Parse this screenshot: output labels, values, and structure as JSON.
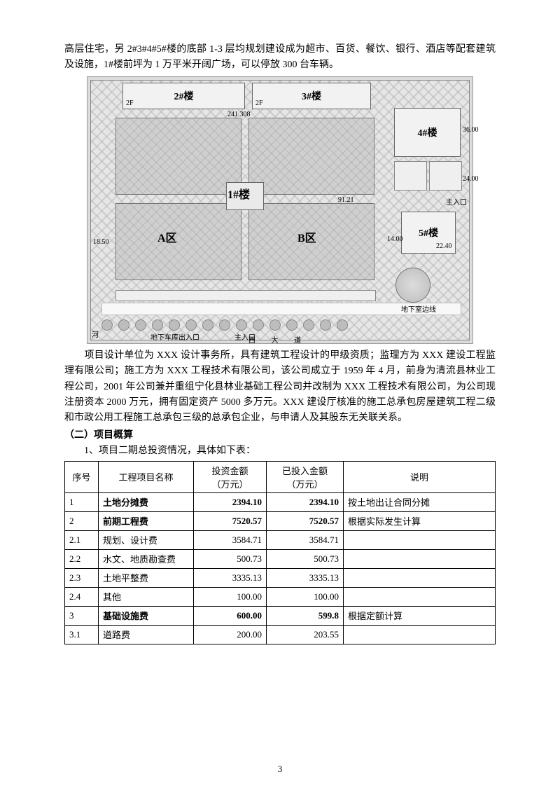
{
  "para_top": "高层住宅，另 2#3#4#5#楼的底部 1-3 层均规划建设成为超市、百货、餐饮、银行、酒店等配套建筑及设施，1#楼前坪为 1 万平米开阔广场，可以停放 300 台车辆。",
  "siteplan": {
    "b2": "2#楼",
    "b3": "3#楼",
    "b4": "4#楼",
    "b5": "5#楼",
    "b1": "1#楼",
    "aq": "A区",
    "bq": "B区",
    "gate_main": "主入口",
    "gate_side": "主入口",
    "garage_in": "地下车库出入口",
    "garage_edge": "地下室边线",
    "road_left": "河",
    "road_bottom": "西    大    道",
    "dim1": "241.308",
    "dim2": "18.50",
    "dim3": "14.00",
    "dim4": "22.40",
    "dim5": "36.00",
    "dim6": "24.00",
    "dim7": "91.21",
    "f2": "2F"
  },
  "para_mid": "　　项目设计单位为 XXX 设计事务所，具有建筑工程设计的甲级资质；监理方为 XXX 建设工程监理有限公司；施工方为 XXX 工程技术有限公司，该公司成立于 1959 年 4 月，前身为清流县林业工程公司，2001 年公司兼并重组宁化县林业基础工程公司并改制为 XXX 工程技术有限公司，为公司现注册资本 2000 万元，拥有固定资产 5000 多万元。XXX 建设厅核准的施工总承包房屋建筑工程二级和市政公用工程施工总承包三级的总承包企业，与申请人及其股东无关联关系。",
  "heading2": "（二）项目概算",
  "para_table_lead": "1、项目二期总投资情况，具体如下表：",
  "table": {
    "headers": {
      "seq": "序号",
      "name": "工程项目名称",
      "amount": "投资金额\n（万元）",
      "invested": "已投入金额\n（万元）",
      "note": "说明"
    },
    "rows": [
      {
        "seq": "1",
        "name": "土地分摊费",
        "amount": "2394.10",
        "invested": "2394.10",
        "note": "按土地出让合同分摊",
        "bold": true
      },
      {
        "seq": "2",
        "name": "前期工程费",
        "amount": "7520.57",
        "invested": "7520.57",
        "note": "根据实际发生计算",
        "bold": true
      },
      {
        "seq": "2.1",
        "name": "规划、设计费",
        "amount": "3584.71",
        "invested": "3584.71",
        "note": ""
      },
      {
        "seq": "2.2",
        "name": "水文、地质勘查费",
        "amount": "500.73",
        "invested": "500.73",
        "note": ""
      },
      {
        "seq": "2.3",
        "name": "土地平整费",
        "amount": "3335.13",
        "invested": "3335.13",
        "note": ""
      },
      {
        "seq": "2.4",
        "name": "其他",
        "amount": "100.00",
        "invested": "100.00",
        "note": ""
      },
      {
        "seq": "3",
        "name": "基础设施费",
        "amount": "600.00",
        "invested": "599.8",
        "note": "根据定额计算",
        "bold": true
      },
      {
        "seq": "3.1",
        "name": "道路费",
        "amount": "200.00",
        "invested": "203.55",
        "note": ""
      }
    ],
    "colwidths": [
      "48px",
      "136px",
      "104px",
      "110px",
      "auto"
    ]
  },
  "page_number": "3"
}
